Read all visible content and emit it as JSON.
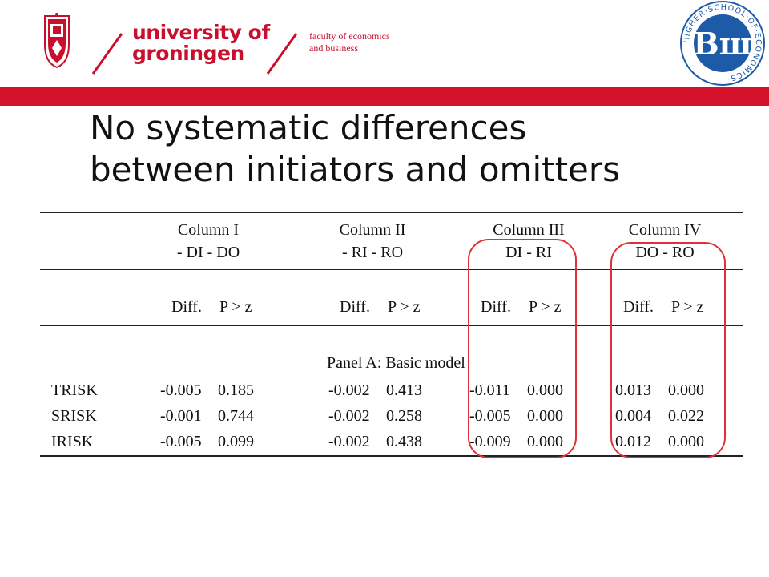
{
  "header": {
    "university_line1": "university of",
    "university_line2": "groningen",
    "faculty_line1": "faculty of economics",
    "faculty_line2": "and business",
    "logo_left": "university-of-groningen-crest",
    "logo_right": "hse-seal",
    "seal_text": "HIGHER·SCHOOL·OF·ECONOMICS·",
    "seal_monogram": "Вш",
    "brand_color": "#c8102e",
    "seal_color": "#1d5aa8"
  },
  "slide": {
    "title_line1": "No systematic differences",
    "title_line2": "between initiators and omitters"
  },
  "table": {
    "columns": [
      {
        "name": "Column I",
        "sub": "- DI - DO"
      },
      {
        "name": "Column II",
        "sub": "- RI - RO"
      },
      {
        "name": "Column III",
        "sub": "DI - RI"
      },
      {
        "name": "Column IV",
        "sub": "DO - RO"
      }
    ],
    "subheaders": [
      "Diff.",
      "P > z"
    ],
    "panel_label": "Panel A: Basic model",
    "rows": [
      {
        "label": "TRISK",
        "values": [
          "-0.005",
          "0.185",
          "-0.002",
          "0.413",
          "-0.011",
          "0.000",
          "0.013",
          "0.000"
        ]
      },
      {
        "label": "SRISK",
        "values": [
          "-0.001",
          "0.744",
          "-0.002",
          "0.258",
          "-0.005",
          "0.000",
          "0.004",
          "0.022"
        ]
      },
      {
        "label": "IRISK",
        "values": [
          "-0.005",
          "0.099",
          "-0.002",
          "0.438",
          "-0.009",
          "0.000",
          "0.012",
          "0.000"
        ]
      }
    ],
    "highlighted_columns": [
      "Column III",
      "Column IV"
    ],
    "highlight_color": "#e0303c"
  }
}
